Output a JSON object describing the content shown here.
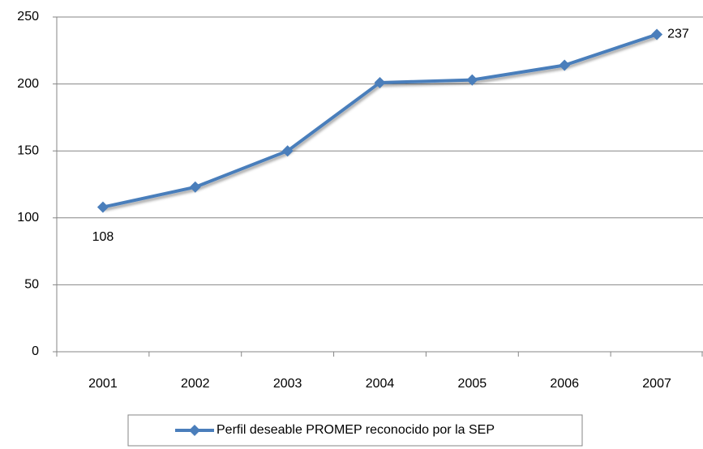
{
  "chart_data": {
    "type": "line",
    "categories": [
      "2001",
      "2002",
      "2003",
      "2004",
      "2005",
      "2006",
      "2007"
    ],
    "series": [
      {
        "name": "Perfil deseable PROMEP  reconocido por la SEP",
        "color": "#4a7ebb",
        "values": [
          108,
          123,
          150,
          201,
          203,
          214,
          237
        ],
        "value_labels": [
          "108",
          null,
          null,
          null,
          null,
          null,
          "237"
        ]
      }
    ],
    "ylim": [
      0,
      250
    ],
    "yticks": [
      0,
      50,
      100,
      150,
      200,
      250
    ],
    "grid": true,
    "legend": "bottom"
  }
}
